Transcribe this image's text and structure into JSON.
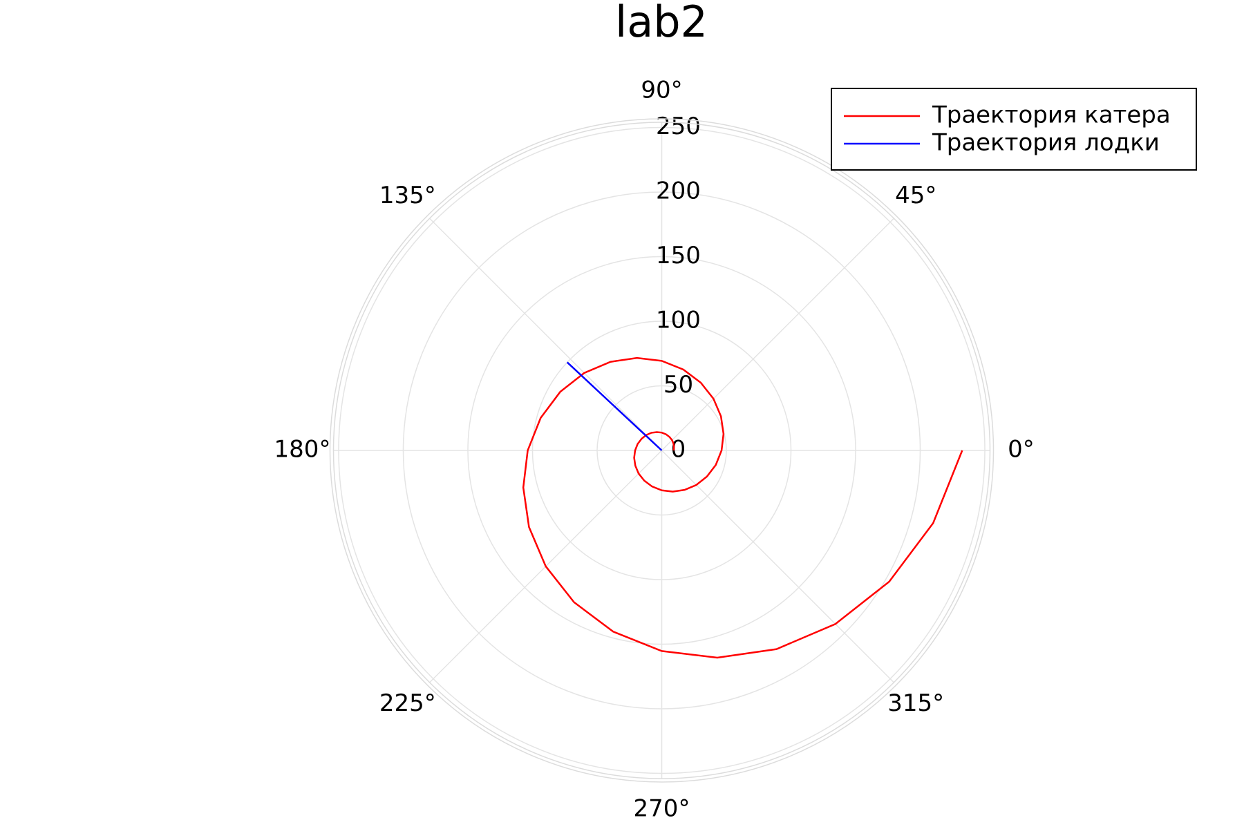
{
  "chart_data": {
    "type": "polar",
    "title": "lab2",
    "rlim": [
      0,
      254
    ],
    "rticks": [
      0,
      50,
      100,
      150,
      200,
      250
    ],
    "thetaticks": [
      {
        "value": 0,
        "label": "0°"
      },
      {
        "value": 45,
        "label": "45°"
      },
      {
        "value": 90,
        "label": "90°"
      },
      {
        "value": 135,
        "label": "135°"
      },
      {
        "value": 180,
        "label": "180°"
      },
      {
        "value": 225,
        "label": "225°"
      },
      {
        "value": 270,
        "label": "270°"
      },
      {
        "value": 315,
        "label": "315°"
      }
    ],
    "grid": true,
    "legend": "upper right",
    "series": [
      {
        "name": "Траектория катера",
        "color": "#ff0000",
        "theta": [
          0,
          15,
          30,
          45,
          60,
          75,
          90,
          105,
          120,
          135,
          150,
          165,
          180,
          195,
          210,
          225,
          240,
          255,
          270,
          285,
          300,
          315,
          330,
          345,
          360,
          375,
          390,
          405,
          420,
          435,
          450,
          465,
          480,
          495,
          510,
          525,
          540,
          555,
          570,
          585,
          600,
          615,
          630,
          645,
          660,
          675,
          690,
          705,
          720
        ],
        "values": [
          9.2,
          9.8,
          10.5,
          11.3,
          12.0,
          12.9,
          13.8,
          14.7,
          15.8,
          16.9,
          18.0,
          19.3,
          20.6,
          22.1,
          23.6,
          25.3,
          27.0,
          28.9,
          30.9,
          33.0,
          35.3,
          37.8,
          40.4,
          43.3,
          46.3,
          49.5,
          52.9,
          56.6,
          60.5,
          64.8,
          69.3,
          74.1,
          79.2,
          84.8,
          90.7,
          97.0,
          103.7,
          110.9,
          118.6,
          126.9,
          135.7,
          145.2,
          155.3,
          166.1,
          177.6,
          190.0,
          203.2,
          217.4,
          232.5
        ]
      },
      {
        "name": "Траектория лодки",
        "color": "#0000ff",
        "theta": [
          137,
          137
        ],
        "values": [
          0,
          100
        ]
      }
    ]
  }
}
